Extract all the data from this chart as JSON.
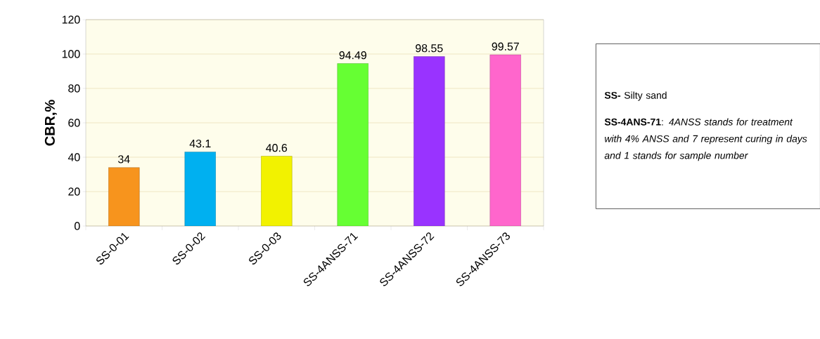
{
  "chart_data": {
    "type": "bar",
    "ylabel": "CBR,%",
    "categories": [
      "SS-0-01",
      "SS-0-02",
      "SS-0-03",
      "SS-4ANSS-71",
      "SS-4ANSS-72",
      "SS-4ANSS-73"
    ],
    "values": [
      34,
      43.1,
      40.6,
      94.49,
      98.55,
      99.57
    ],
    "colors": [
      "#f7941d",
      "#00b0f0",
      "#f2f200",
      "#66ff33",
      "#9933ff",
      "#ff66cc"
    ],
    "ylim": [
      0,
      120
    ],
    "yticks": [
      0,
      20,
      40,
      60,
      80,
      100,
      120
    ],
    "grid": "y",
    "data_labels": true,
    "annotations": [
      "**SS-** Silty sand",
      "**SS-4ANS-71**: *4ANSS stands for treatment with 4% ANSS and 7 represent curing in days and 1 stands for sample number*"
    ]
  }
}
